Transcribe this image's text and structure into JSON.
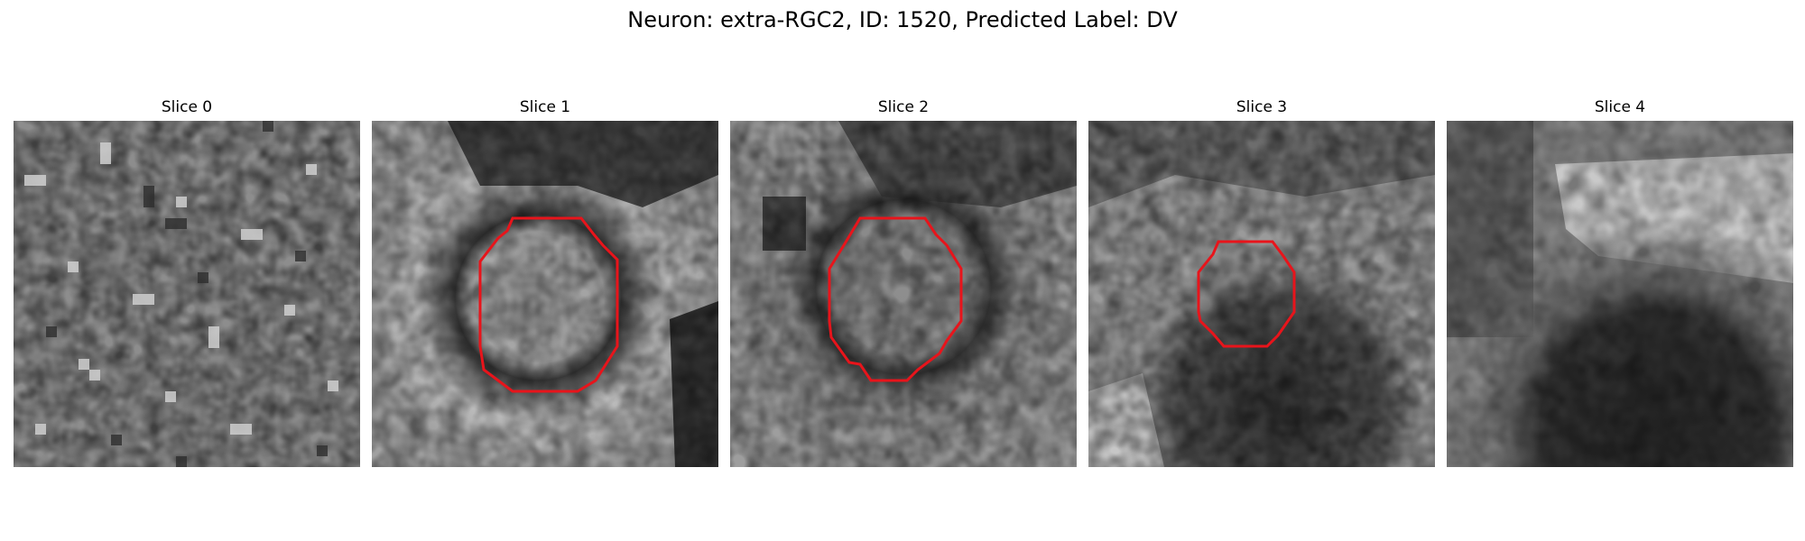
{
  "figure": {
    "title": "Neuron: extra-RGC2, ID: 1520, Predicted Label: DV",
    "neuron_type": "extra-RGC2",
    "id": "1520",
    "predicted_label": "DV",
    "contour_color": "#e8141b"
  },
  "slices": [
    {
      "title": "Slice 0",
      "has_contour": false
    },
    {
      "title": "Slice 1",
      "has_contour": true
    },
    {
      "title": "Slice 2",
      "has_contour": true
    },
    {
      "title": "Slice 3",
      "has_contour": true
    },
    {
      "title": "Slice 4",
      "has_contour": false
    }
  ]
}
